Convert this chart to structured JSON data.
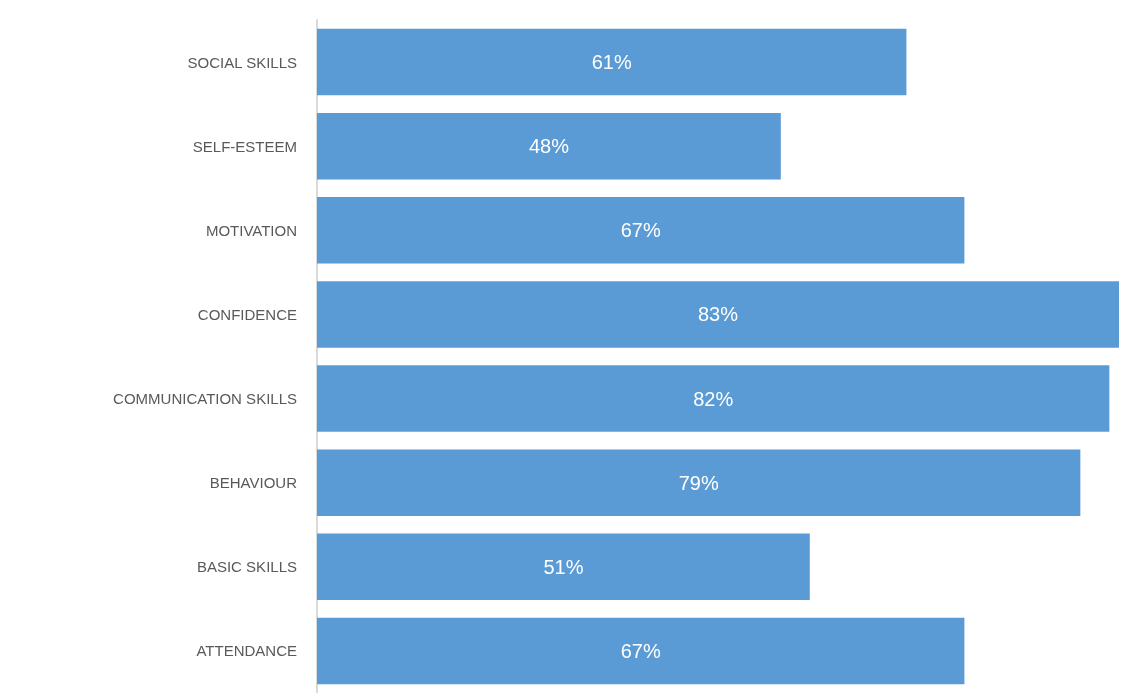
{
  "chart_data": {
    "type": "bar",
    "orientation": "horizontal",
    "categories": [
      "SOCIAL SKILLS",
      "SELF-ESTEEM",
      "MOTIVATION",
      "CONFIDENCE",
      "COMMUNICATION SKILLS",
      "BEHAVIOUR",
      "BASIC SKILLS",
      "ATTENDANCE"
    ],
    "values": [
      61,
      48,
      67,
      83,
      82,
      79,
      51,
      67
    ],
    "value_labels": [
      "61%",
      "48%",
      "67%",
      "83%",
      "82%",
      "79%",
      "51%",
      "67%"
    ],
    "color": "#5b9bd5",
    "tick_labels": "y"
  }
}
